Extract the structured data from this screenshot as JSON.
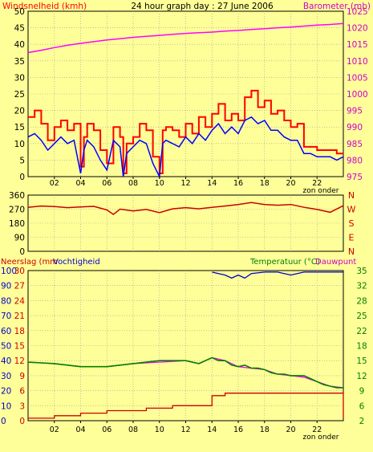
{
  "chart_data": [
    {
      "type": "line",
      "title": "24 hour graph day : 27 June 2006",
      "left_axis_label": "Windsnelheid (kmh)",
      "right_axis_label": "Barometer (mb)",
      "x_ticks": [
        "02",
        "04",
        "06",
        "08",
        "10",
        "12",
        "14",
        "16",
        "18",
        "20",
        "22"
      ],
      "x_extra_label": "zon onder",
      "xlim": [
        0,
        24
      ],
      "ylim_left": [
        0,
        50
      ],
      "ylim_right": [
        975,
        1025
      ],
      "y_ticks_left": [
        0,
        5,
        10,
        15,
        20,
        25,
        30,
        35,
        40,
        45,
        50
      ],
      "y_ticks_right": [
        975,
        980,
        985,
        990,
        995,
        1000,
        1005,
        1010,
        1015,
        1020,
        1025
      ],
      "grid": true,
      "series": [
        {
          "axis": "right",
          "color": "#ff00ff",
          "x": [
            0,
            1,
            2,
            3,
            4,
            5,
            6,
            7,
            8,
            9,
            10,
            11,
            12,
            13,
            14,
            15,
            16,
            17,
            18,
            19,
            20,
            21,
            22,
            23,
            24
          ],
          "values": [
            1012.5,
            1013.2,
            1014,
            1014.7,
            1015.3,
            1015.8,
            1016.3,
            1016.7,
            1017.1,
            1017.4,
            1017.7,
            1018,
            1018.3,
            1018.5,
            1018.7,
            1019,
            1019.2,
            1019.5,
            1019.7,
            1020,
            1020.2,
            1020.5,
            1020.8,
            1021,
            1021.3
          ]
        },
        {
          "axis": "left",
          "color": "#ff0000",
          "style": "step",
          "x": [
            0,
            0.5,
            1,
            1.5,
            2,
            2.5,
            3,
            3.5,
            4,
            4.25,
            4.5,
            5,
            5.5,
            6,
            6.5,
            7,
            7.25,
            7.5,
            8,
            8.5,
            9,
            9.5,
            10,
            10.25,
            10.5,
            11,
            11.5,
            12,
            12.5,
            13,
            13.5,
            14,
            14.5,
            15,
            15.5,
            16,
            16.5,
            17,
            17.5,
            18,
            18.5,
            19,
            19.5,
            20,
            20.5,
            21,
            21.5,
            22,
            22.5,
            23,
            23.5,
            24
          ],
          "values": [
            18,
            20,
            16,
            11,
            15,
            17,
            14,
            16,
            3,
            12,
            16,
            14,
            8,
            4,
            15,
            12,
            1,
            10,
            12,
            16,
            14,
            6,
            1,
            14,
            15,
            14,
            12,
            16,
            13,
            18,
            15,
            19,
            22,
            17,
            19,
            17,
            24,
            26,
            21,
            23,
            19,
            20,
            17,
            15,
            16,
            9,
            9,
            8,
            8,
            8,
            7,
            7
          ]
        },
        {
          "axis": "left",
          "color": "#0000ff",
          "x": [
            0,
            0.5,
            1,
            1.5,
            2,
            2.5,
            3,
            3.5,
            4,
            4.25,
            4.5,
            5,
            5.5,
            6,
            6.5,
            7,
            7.25,
            7.5,
            8,
            8.5,
            9,
            9.5,
            10,
            10.25,
            10.5,
            11,
            11.5,
            12,
            12.5,
            13,
            13.5,
            14,
            14.5,
            15,
            15.5,
            16,
            16.5,
            17,
            17.5,
            18,
            18.5,
            19,
            19.5,
            20,
            20.5,
            21,
            21.5,
            22,
            22.5,
            23,
            23.5,
            24
          ],
          "values": [
            12,
            13,
            11,
            8,
            10,
            12,
            10,
            11,
            1,
            8,
            11,
            9,
            5,
            2,
            11,
            9,
            0,
            7,
            9,
            11,
            10,
            4,
            0,
            10,
            11,
            10,
            9,
            12,
            10,
            13,
            11,
            14,
            16,
            13,
            15,
            13,
            17,
            18,
            16,
            17,
            14,
            14,
            12,
            11,
            11,
            7,
            7,
            6,
            6,
            6,
            5,
            6
          ]
        }
      ]
    },
    {
      "type": "line",
      "y_ticks_left": [
        0,
        90,
        180,
        270,
        360
      ],
      "ylim": [
        0,
        360
      ],
      "right_labels": [
        "N",
        "W",
        "S",
        "E",
        "N"
      ],
      "xlim": [
        0,
        24
      ],
      "grid": true,
      "series": [
        {
          "color": "#cc0000",
          "x": [
            0,
            1,
            2,
            3,
            4,
            5,
            6,
            6.5,
            7,
            8,
            9,
            10,
            11,
            12,
            13,
            14,
            15,
            16,
            17,
            18,
            19,
            20,
            21,
            22,
            23,
            24
          ],
          "values": [
            282,
            290,
            287,
            280,
            284,
            288,
            265,
            236,
            270,
            258,
            268,
            248,
            272,
            280,
            272,
            282,
            290,
            300,
            312,
            300,
            295,
            300,
            282,
            268,
            250,
            292
          ]
        }
      ]
    },
    {
      "type": "line",
      "left_axis_label_1": "Neerslag (mm",
      "left_axis_label_2": "Vochtigheid",
      "right_axis_label_1": "Temperatuur (°C)",
      "right_axis_label_2": "Dauwpunt",
      "x_ticks": [
        "02",
        "04",
        "06",
        "08",
        "10",
        "12",
        "14",
        "16",
        "18",
        "20",
        "22"
      ],
      "x_extra_label": "zon onder",
      "xlim": [
        0,
        24
      ],
      "y_ticks_left": [
        0,
        10,
        20,
        30,
        40,
        50,
        60,
        70,
        80,
        90,
        100
      ],
      "y_ticks_inner": [
        0,
        3,
        6,
        9,
        12,
        15,
        18,
        21,
        24,
        27,
        30
      ],
      "y_ticks_right": [
        2,
        6,
        9,
        12,
        15,
        18,
        22,
        25,
        28,
        32,
        35
      ],
      "ylim_left": [
        0,
        100
      ],
      "ylim_inner": [
        0,
        30
      ],
      "ylim_right": [
        2,
        35
      ],
      "grid": true,
      "series": [
        {
          "axis": "left",
          "color": "#0000cc",
          "x": [
            14,
            14.5,
            15,
            15.5,
            16,
            16.5,
            17,
            18,
            19,
            20,
            21,
            22,
            23,
            24
          ],
          "values": [
            99,
            98,
            97,
            95,
            97,
            95,
            98,
            99,
            99,
            97,
            99,
            99,
            99,
            99
          ]
        },
        {
          "axis": "left",
          "color": "#ff00ff",
          "x": [
            0,
            2,
            4,
            6,
            8,
            10,
            12,
            13,
            14,
            14.5,
            15,
            16,
            17,
            18,
            19,
            20,
            21,
            22,
            23,
            24
          ],
          "values": [
            39,
            38,
            36,
            36,
            38,
            39,
            40,
            38,
            42,
            41,
            40,
            36,
            35,
            34,
            31,
            30,
            29,
            26,
            23,
            22
          ]
        },
        {
          "axis": "left",
          "color": "#008000",
          "x": [
            0,
            1,
            2,
            3,
            4,
            5,
            6,
            7,
            8,
            9,
            10,
            11,
            12,
            13,
            14,
            14.5,
            15,
            15.5,
            16,
            16.5,
            17,
            17.5,
            18,
            18.5,
            19,
            19.5,
            20,
            20.5,
            21,
            21.5,
            22,
            22.5,
            23,
            23.5,
            24
          ],
          "values": [
            39,
            38.5,
            38,
            37,
            36,
            36,
            36,
            37,
            38,
            39,
            40,
            40,
            40,
            38,
            42,
            40,
            40,
            37,
            36,
            37,
            35,
            35,
            34,
            32,
            31,
            31,
            30,
            30,
            30,
            28,
            26,
            24,
            23,
            22,
            22
          ]
        },
        {
          "axis": "inner",
          "color": "#cc0000",
          "style": "step",
          "x": [
            0,
            1,
            2,
            3,
            4,
            5,
            6,
            7,
            8,
            9,
            10,
            11,
            12,
            13,
            14,
            15,
            16,
            17,
            18,
            19,
            20,
            21,
            22,
            23,
            23.5,
            24
          ],
          "values": [
            0.5,
            0.5,
            1,
            1,
            1.5,
            1.5,
            2,
            2,
            2,
            2.5,
            2.5,
            3,
            3,
            3,
            5,
            5.5,
            5.5,
            5.5,
            5.5,
            5.5,
            5.5,
            5.5,
            5.5,
            5.5,
            5.5,
            0.5
          ]
        }
      ]
    }
  ]
}
